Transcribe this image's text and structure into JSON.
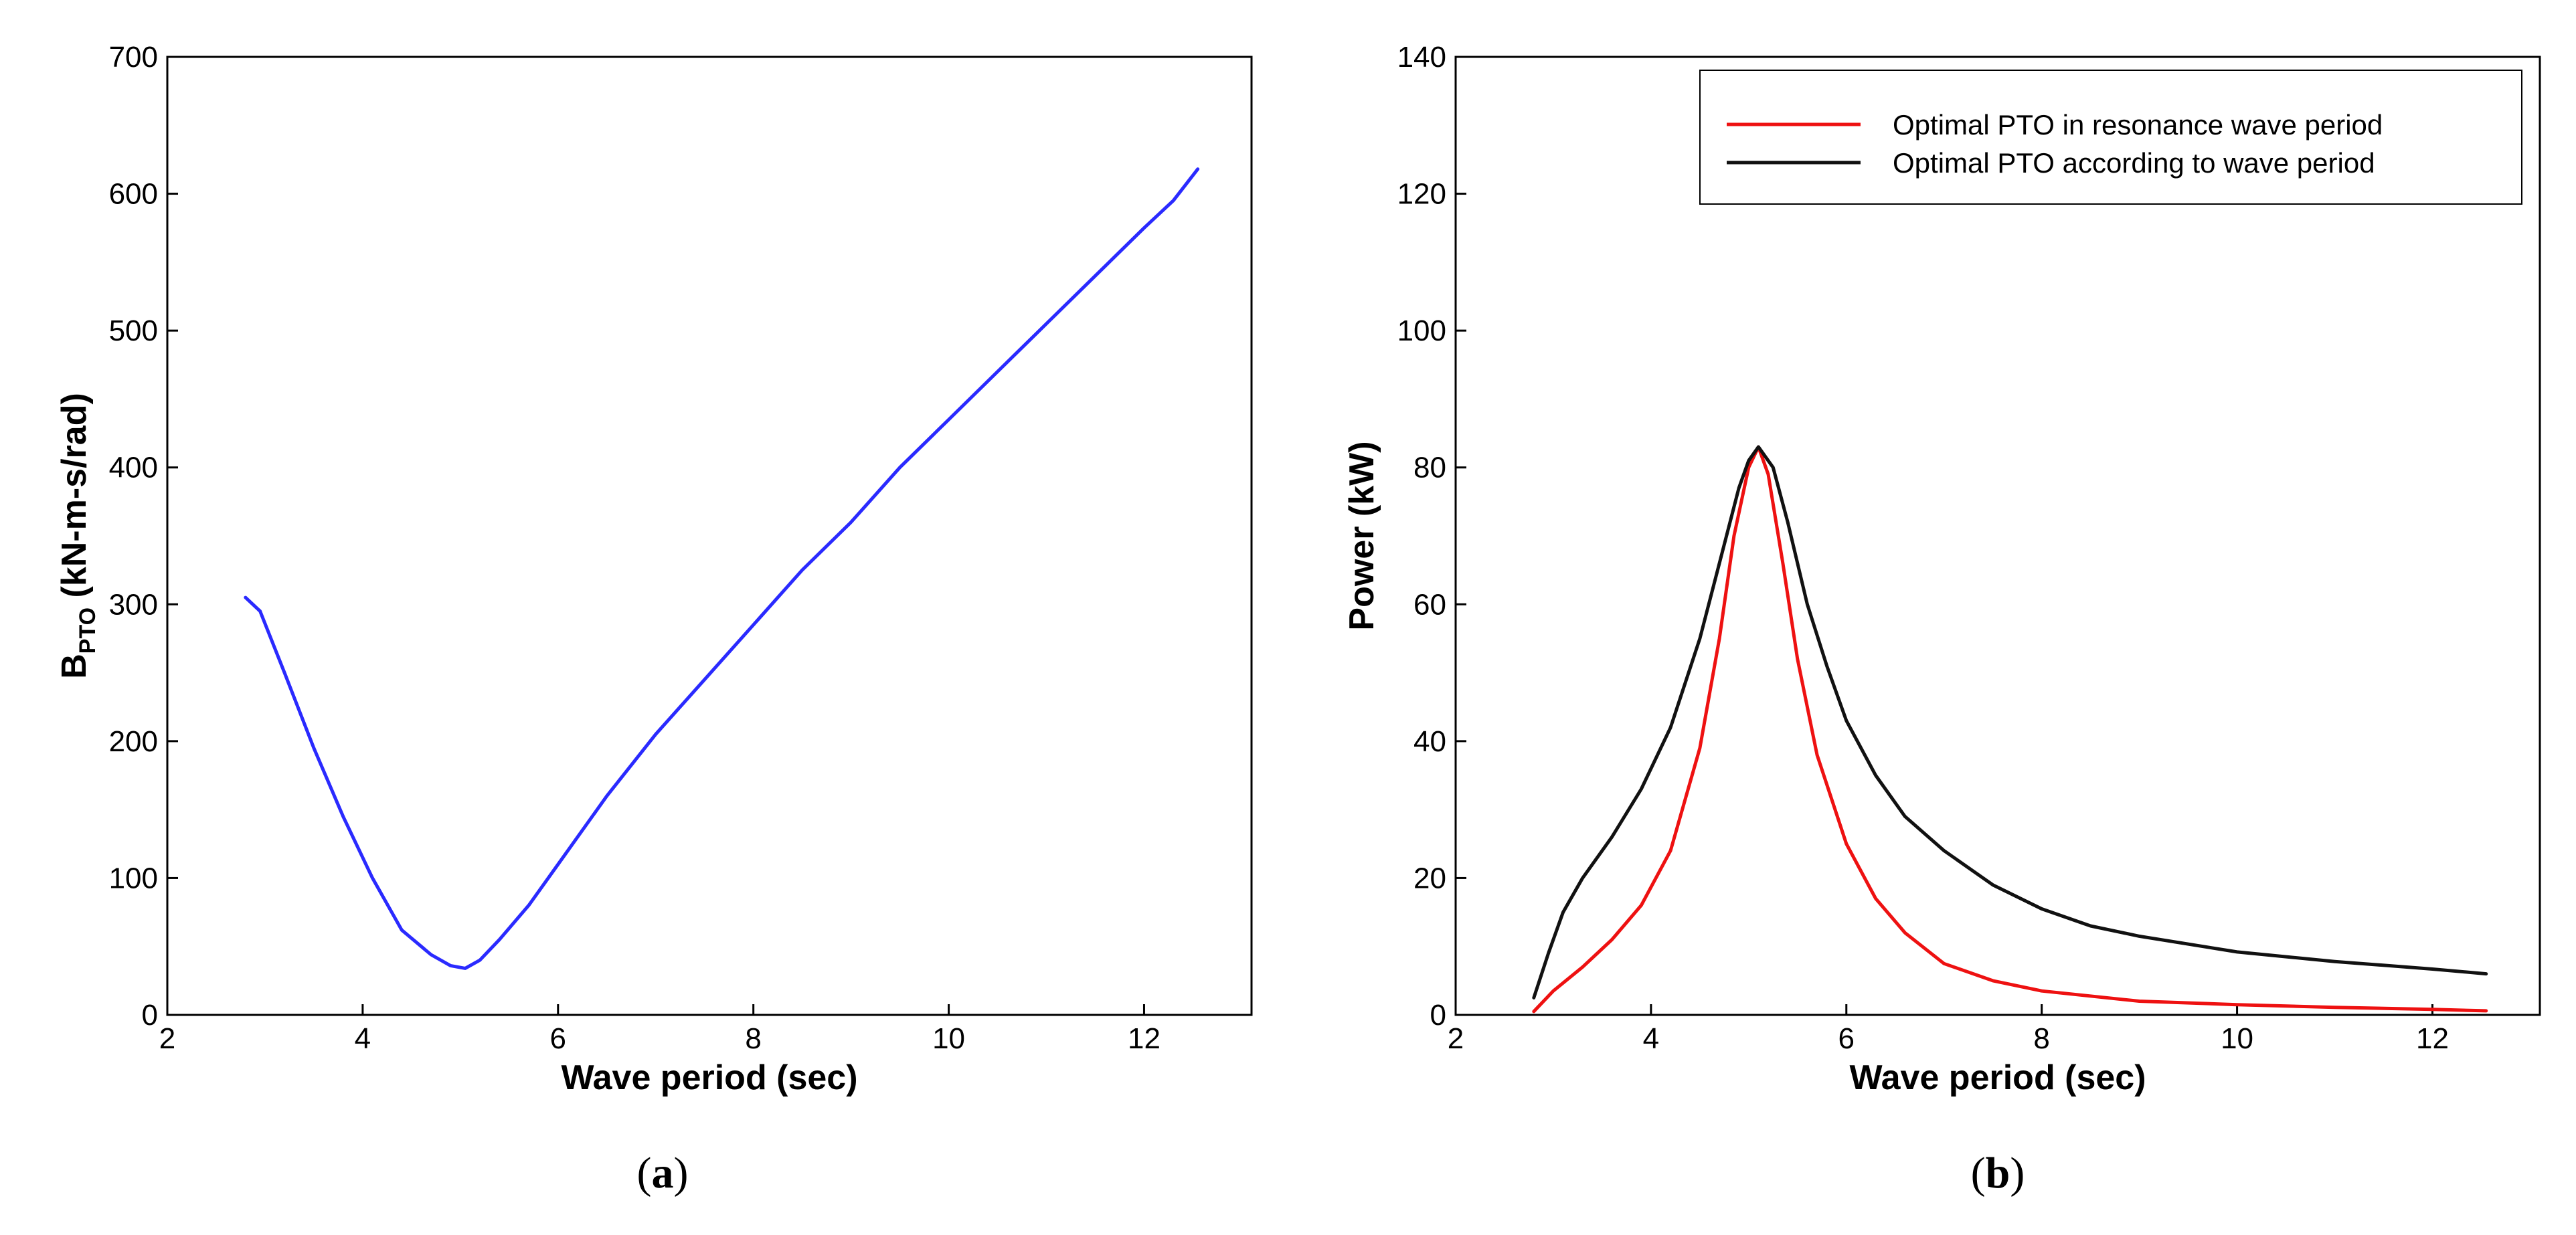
{
  "chart_data": [
    {
      "type": "line",
      "caption": {
        "open": "(",
        "letter": "a",
        "close": ")"
      },
      "title": "",
      "xlabel": "Wave period (sec)",
      "ylabel": {
        "main": "B",
        "sub": "PTO",
        "rest": " (kN-m-s/rad)"
      },
      "xlim": [
        2,
        13.1
      ],
      "ylim": [
        0,
        700
      ],
      "xticks": [
        2,
        4,
        6,
        8,
        10,
        12
      ],
      "yticks": [
        0,
        100,
        200,
        300,
        400,
        500,
        600,
        700
      ],
      "grid": false,
      "legend": null,
      "series": [
        {
          "name": "BPTO",
          "color": "#2a2aff",
          "x": [
            2.8,
            2.95,
            3.2,
            3.5,
            3.8,
            4.1,
            4.4,
            4.7,
            4.9,
            5.05,
            5.2,
            5.4,
            5.7,
            6.0,
            6.5,
            7.0,
            7.5,
            8.0,
            8.5,
            9.0,
            9.5,
            10.0,
            10.5,
            11.0,
            11.5,
            12.0,
            12.3,
            12.55
          ],
          "y": [
            305,
            295,
            250,
            195,
            145,
            100,
            62,
            44,
            36,
            34,
            40,
            55,
            80,
            110,
            160,
            205,
            245,
            285,
            325,
            360,
            400,
            435,
            470,
            505,
            540,
            575,
            595,
            618
          ]
        }
      ]
    },
    {
      "type": "line",
      "caption": {
        "open": "(",
        "letter": "b",
        "close": ")"
      },
      "title": "",
      "xlabel": "Wave period (sec)",
      "ylabel": "Power (kW)",
      "xlim": [
        2,
        13.1
      ],
      "ylim": [
        0,
        140
      ],
      "xticks": [
        2,
        4,
        6,
        8,
        10,
        12
      ],
      "yticks": [
        0,
        20,
        40,
        60,
        80,
        100,
        120,
        140
      ],
      "grid": false,
      "legend": "top-right",
      "series": [
        {
          "name": "Optimal PTO in resonance wave period",
          "color": "#ee1111",
          "x": [
            2.8,
            3.0,
            3.3,
            3.6,
            3.9,
            4.2,
            4.5,
            4.7,
            4.85,
            5.0,
            5.1,
            5.2,
            5.35,
            5.5,
            5.7,
            6.0,
            6.3,
            6.6,
            7.0,
            7.5,
            8.0,
            9.0,
            10.0,
            11.0,
            12.0,
            12.55
          ],
          "y": [
            0.5,
            3.5,
            7,
            11,
            16,
            24,
            39,
            55,
            70,
            80,
            83,
            79,
            66,
            52,
            38,
            25,
            17,
            12,
            7.5,
            5,
            3.5,
            2,
            1.5,
            1.1,
            0.8,
            0.6
          ]
        },
        {
          "name": "Optimal PTO according to wave period",
          "color": "#111111",
          "x": [
            2.8,
            2.95,
            3.1,
            3.3,
            3.6,
            3.9,
            4.2,
            4.5,
            4.7,
            4.9,
            5.0,
            5.1,
            5.25,
            5.4,
            5.6,
            5.8,
            6.0,
            6.3,
            6.6,
            7.0,
            7.5,
            8.0,
            8.5,
            9.0,
            10.0,
            11.0,
            12.0,
            12.55
          ],
          "y": [
            2.5,
            9,
            15,
            20,
            26,
            33,
            42,
            55,
            66,
            77,
            81,
            83,
            80,
            72,
            60,
            51,
            43,
            35,
            29,
            24,
            19,
            15.5,
            13,
            11.5,
            9.2,
            7.8,
            6.7,
            6
          ]
        }
      ]
    }
  ]
}
